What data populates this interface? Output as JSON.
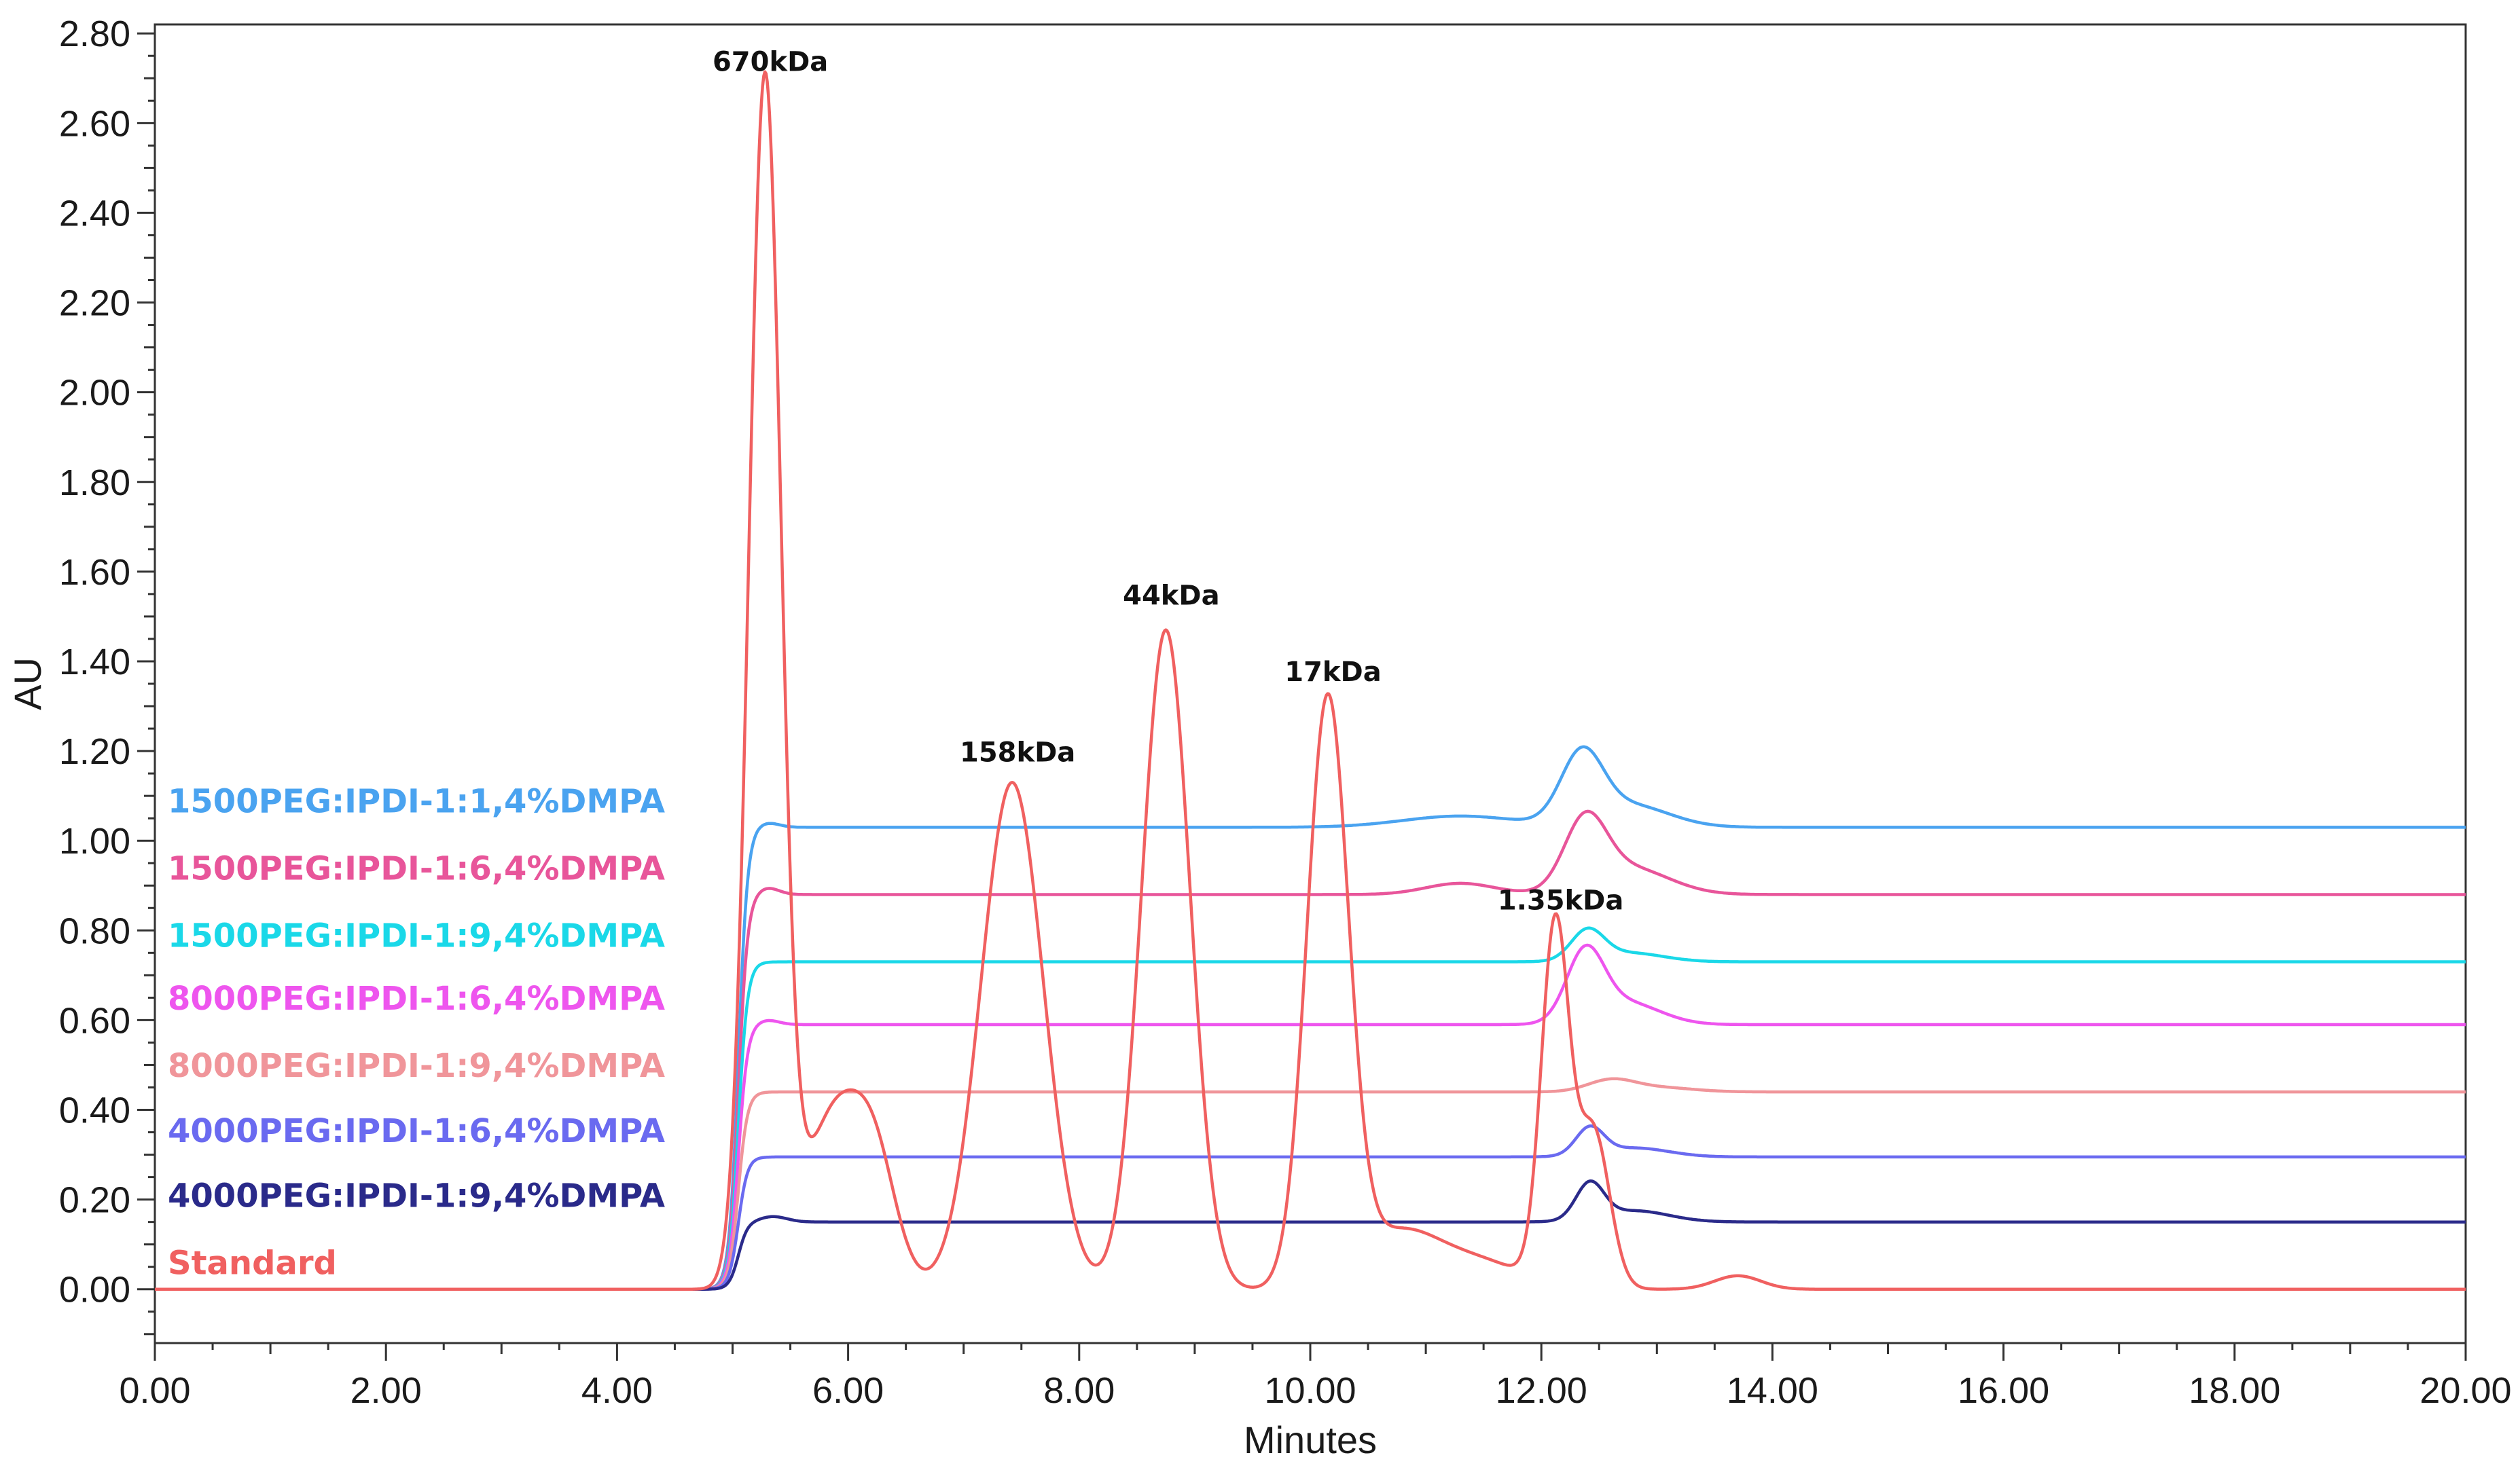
{
  "chart_data": {
    "type": "line",
    "title": "",
    "xlabel": "Minutes",
    "ylabel": "AU",
    "xlim": [
      0,
      20
    ],
    "ylim": [
      -0.12,
      2.82
    ],
    "x_ticks": [
      "0.00",
      "2.00",
      "4.00",
      "6.00",
      "8.00",
      "10.00",
      "12.00",
      "14.00",
      "16.00",
      "18.00",
      "20.00"
    ],
    "y_ticks": [
      "0.00",
      "0.20",
      "0.40",
      "0.60",
      "0.80",
      "1.00",
      "1.20",
      "1.40",
      "1.60",
      "1.80",
      "2.00",
      "2.20",
      "2.40",
      "2.60",
      "2.80"
    ],
    "legend_placement": "left, stacked above each trace",
    "peak_annotations": [
      {
        "label": "670kDa",
        "x": 5.28,
        "y": 2.68
      },
      {
        "label": "158kDa",
        "x": 7.42,
        "y": 1.14
      },
      {
        "label": "44kDa",
        "x": 8.75,
        "y": 1.49
      },
      {
        "label": "17kDa",
        "x": 10.15,
        "y": 1.32
      },
      {
        "label": "1.35kDa",
        "x": 12.12,
        "y": 0.81
      }
    ],
    "series": [
      {
        "name": "1500PEG:IPDI-1:1,4%DMPA",
        "color": "#4aa3f0",
        "baseline": 1.03,
        "peaks": [
          {
            "x": 5.3,
            "h": 0.01,
            "s": 0.1
          },
          {
            "x": 11.3,
            "h": 0.025,
            "s": 0.5
          },
          {
            "x": 12.35,
            "h": 0.15,
            "s": 0.18
          },
          {
            "x": 12.75,
            "h": 0.05,
            "s": 0.35
          }
        ]
      },
      {
        "name": "1500PEG:IPDI-1:6,4%DMPA",
        "color": "#e8559a",
        "baseline": 0.88,
        "peaks": [
          {
            "x": 5.3,
            "h": 0.015,
            "s": 0.1
          },
          {
            "x": 11.3,
            "h": 0.025,
            "s": 0.3
          },
          {
            "x": 12.38,
            "h": 0.15,
            "s": 0.18
          },
          {
            "x": 12.75,
            "h": 0.06,
            "s": 0.35
          }
        ]
      },
      {
        "name": "1500PEG:IPDI-1:9,4%DMPA",
        "color": "#1ad8e8",
        "baseline": 0.73,
        "peaks": [
          {
            "x": 12.4,
            "h": 0.065,
            "s": 0.14
          },
          {
            "x": 12.75,
            "h": 0.02,
            "s": 0.3
          }
        ]
      },
      {
        "name": "8000PEG:IPDI-1:6,4%DMPA",
        "color": "#ee55ee",
        "baseline": 0.59,
        "peaks": [
          {
            "x": 5.3,
            "h": 0.01,
            "s": 0.1
          },
          {
            "x": 12.38,
            "h": 0.15,
            "s": 0.16
          },
          {
            "x": 12.72,
            "h": 0.05,
            "s": 0.3
          }
        ]
      },
      {
        "name": "8000PEG:IPDI-1:9,4%DMPA",
        "color": "#f0959a",
        "baseline": 0.44,
        "peaks": [
          {
            "x": 12.6,
            "h": 0.025,
            "s": 0.2
          },
          {
            "x": 13.0,
            "h": 0.01,
            "s": 0.3
          }
        ]
      },
      {
        "name": "4000PEG:IPDI-1:6,4%DMPA",
        "color": "#6a6af0",
        "baseline": 0.295,
        "peaks": [
          {
            "x": 12.42,
            "h": 0.06,
            "s": 0.12
          },
          {
            "x": 12.8,
            "h": 0.02,
            "s": 0.3
          }
        ]
      },
      {
        "name": "4000PEG:IPDI-1:9,4%DMPA",
        "color": "#2a2a8a",
        "baseline": 0.15,
        "peaks": [
          {
            "x": 5.35,
            "h": 0.012,
            "s": 0.12
          },
          {
            "x": 12.42,
            "h": 0.08,
            "s": 0.12
          },
          {
            "x": 12.8,
            "h": 0.025,
            "s": 0.3
          }
        ]
      },
      {
        "name": "Standard",
        "color": "#f06060",
        "baseline": 0.0,
        "peaks": [
          {
            "x": 5.28,
            "h": 2.68,
            "s": 0.14
          },
          {
            "x": 5.9,
            "h": 0.4,
            "s": 0.28
          },
          {
            "x": 6.25,
            "h": 0.18,
            "s": 0.18
          },
          {
            "x": 7.42,
            "h": 1.13,
            "s": 0.27
          },
          {
            "x": 8.75,
            "h": 1.47,
            "s": 0.21
          },
          {
            "x": 10.15,
            "h": 1.3,
            "s": 0.18
          },
          {
            "x": 10.75,
            "h": 0.12,
            "s": 0.35
          },
          {
            "x": 11.45,
            "h": 0.06,
            "s": 0.4
          },
          {
            "x": 12.12,
            "h": 0.8,
            "s": 0.12
          },
          {
            "x": 12.45,
            "h": 0.35,
            "s": 0.14
          },
          {
            "x": 13.7,
            "h": 0.03,
            "s": 0.2
          }
        ]
      }
    ]
  }
}
